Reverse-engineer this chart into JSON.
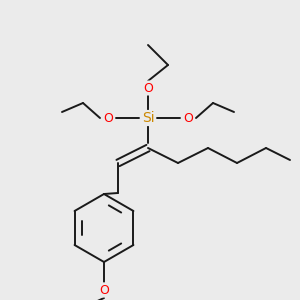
{
  "bg_color": "#ebebeb",
  "bond_color": "#1a1a1a",
  "oxygen_color": "#ff0000",
  "silicon_color": "#cc8800",
  "bond_width": 1.4,
  "figsize": [
    3.0,
    3.0
  ],
  "dpi": 100,
  "si_label": "Si",
  "o_label": "O",
  "si_fontsize": 10,
  "o_fontsize": 9
}
